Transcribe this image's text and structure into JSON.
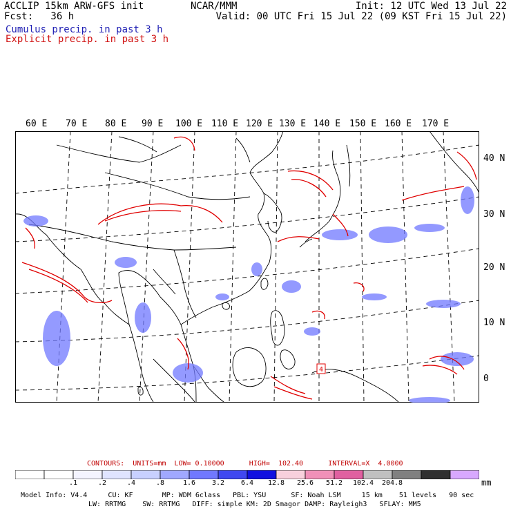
{
  "header": {
    "line1_left": "ACCLIP 15km ARW-GFS init",
    "line2_left": "Fcst:   36 h",
    "center": "NCAR/MMM",
    "init": "Init: 12 UTC Wed 13 Jul 22",
    "valid": "Valid: 00 UTC Fri 15 Jul 22 (09 KST Fri 15 Jul 22)"
  },
  "legend": {
    "cumulus": "Cumulus precip. in past 3 h",
    "explicit": "Explicit precip. in past 3 h",
    "cumulus_color": "#1f1fb4",
    "explicit_color": "#d01010"
  },
  "map": {
    "lon_labels": [
      "60 E",
      "70 E",
      "80 E",
      "90 E",
      "100 E",
      "110 E",
      "120 E",
      "130 E",
      "140 E",
      "150 E",
      "160 E",
      "170 E"
    ],
    "lat_labels": [
      "40 N",
      "30 N",
      "20 N",
      "10 N",
      "0"
    ],
    "box_label": "4"
  },
  "contours": {
    "text": "CONTOURS:  UNITS=mm  LOW= 0.10000      HIGH=  102.40      INTERVAL=X  4.0000"
  },
  "colorbar": {
    "colors": [
      "#ffffff",
      "#ffffff",
      "#f4f4ff",
      "#e0e4ff",
      "#c8d0ff",
      "#a0a8ff",
      "#7078ff",
      "#4048f0",
      "#1010e0",
      "#f8d0dc",
      "#f090b8",
      "#e060a0",
      "#c0c0c0",
      "#808080",
      "#303030",
      "#d8a8ff"
    ],
    "labels": [
      ".1",
      ".2",
      ".4",
      ".8",
      "1.6",
      "3.2",
      "6.4",
      "12.8",
      "25.6",
      "51.2",
      "102.4",
      "204.8"
    ],
    "unit": "mm"
  },
  "footer": {
    "line1": "Model Info: V4.4     CU: KF       MP: WDM 6class   PBL: YSU      SF: Noah LSM     15 km    51 levels   90 sec",
    "line2": "LW: RRTMG    SW: RRTMG   DIFF: simple KM: 2D Smagor DAMP: Rayleigh3   SFLAY: MM5"
  }
}
